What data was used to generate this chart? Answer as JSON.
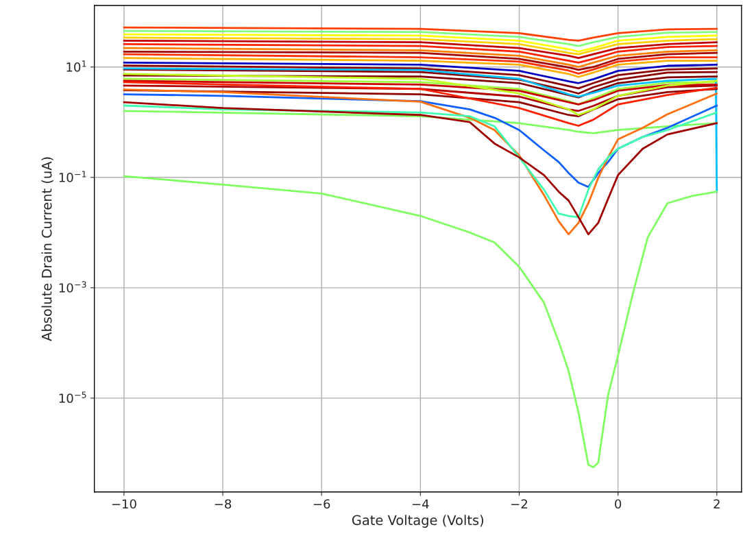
{
  "chart_data": {
    "type": "line",
    "xlabel": "Gate Voltage (Volts)",
    "ylabel": "Absolute Drain Current (uA)",
    "log": "y",
    "grid": true,
    "marker": "none",
    "line_style": "solid",
    "xlim": [
      -10.6,
      2.5
    ],
    "ylim": [
      2e-07,
      130
    ],
    "xticks": [
      {
        "value": -10,
        "label": "−10"
      },
      {
        "value": -8,
        "label": "−8"
      },
      {
        "value": -6,
        "label": "−6"
      },
      {
        "value": -4,
        "label": "−4"
      },
      {
        "value": -2,
        "label": "−2"
      },
      0,
      2
    ],
    "yticks": [
      {
        "value": 1e-05,
        "label": "10$^{−5}$"
      },
      {
        "value": 0.001,
        "label": "10$^{−3}$"
      },
      {
        "value": 0.1,
        "label": "10$^{−1}$"
      },
      {
        "value": 10,
        "label": "10$^{1}$"
      }
    ],
    "x": [
      -10,
      -4,
      -2,
      -1,
      -0.8,
      -0.5,
      0,
      1,
      2
    ],
    "series": [
      {
        "color": "#ff4000",
        "values": [
          52,
          49,
          41,
          31,
          30,
          34,
          41,
          48,
          49
        ]
      },
      {
        "color": "#80ff80",
        "values": [
          45,
          43,
          35,
          26,
          24,
          28,
          35,
          42,
          43
        ]
      },
      {
        "color": "#ffff00",
        "values": [
          39,
          37,
          30,
          21,
          19,
          22,
          30,
          35,
          37
        ]
      },
      {
        "color": "#ffd000",
        "values": [
          34,
          32,
          26,
          18,
          17,
          20,
          26,
          30,
          32
        ]
      },
      {
        "color": "#c00000",
        "values": [
          30,
          28,
          22,
          16,
          14.5,
          17,
          22,
          26,
          28
        ]
      },
      {
        "color": "#ff2000",
        "values": [
          26,
          24,
          19,
          13,
          12,
          14,
          19,
          23,
          24
        ]
      },
      {
        "color": "#ff8000",
        "values": [
          22,
          20,
          16,
          11,
          10,
          12,
          16,
          19,
          20
        ]
      },
      {
        "color": "#a00000",
        "values": [
          19,
          18,
          14,
          9.8,
          8.9,
          10,
          14,
          17,
          18
        ]
      },
      {
        "color": "#ff3000",
        "values": [
          17,
          15,
          12.5,
          8.6,
          7.6,
          9,
          12.5,
          15,
          15
        ]
      },
      {
        "color": "#ffb000",
        "values": [
          14.5,
          13,
          11,
          7.5,
          6.6,
          7.9,
          11,
          13,
          13
        ]
      },
      {
        "color": "#0000c0",
        "values": [
          12,
          11,
          8.5,
          5.5,
          5.1,
          6,
          8.5,
          10.5,
          11
        ]
      },
      {
        "color": "#8b0000",
        "values": [
          10.6,
          9.4,
          7.1,
          4.5,
          4.1,
          5.1,
          7.1,
          9,
          9.4
        ]
      },
      {
        "color": "#8b0000",
        "values": [
          9,
          8.1,
          5.9,
          3.7,
          3.3,
          4.3,
          5.9,
          7.9,
          8.1
        ]
      },
      {
        "color": "#800000",
        "values": [
          7.0,
          6.7,
          5.1,
          3.1,
          2.8,
          3.6,
          5.1,
          6.5,
          6.7
        ]
      },
      {
        "color": "#a0ff40",
        "values": [
          6.1,
          5.3,
          4.0,
          2.4,
          2.1,
          2.7,
          4.0,
          5.2,
          5.3
        ]
      },
      {
        "color": "#00c0ff",
        "x": [
          -10,
          -4,
          -2,
          -1,
          -0.8,
          -0.5,
          0,
          1,
          1.98,
          2
        ],
        "values": [
          9.4,
          8.8,
          6.1,
          3.2,
          2.9,
          3.4,
          4.6,
          5.6,
          6.1,
          0.054
        ]
      },
      {
        "color": "#c80000",
        "values": [
          5.6,
          4.8,
          3.7,
          2.3,
          2.1,
          2.5,
          3.7,
          4.7,
          4.8
        ]
      },
      {
        "color": "#b00000",
        "values": [
          4.6,
          4,
          2.9,
          1.7,
          1.6,
          1.97,
          3.0,
          4.3,
          4.6
        ]
      },
      {
        "color": "#900000",
        "values": [
          3.8,
          3.2,
          2.3,
          1.35,
          1.28,
          1.7,
          2.6,
          3.5,
          4.0
        ]
      },
      {
        "color": "#ff2000",
        "values": [
          5.3,
          4.0,
          1.8,
          0.96,
          0.86,
          1.11,
          2.1,
          3.1,
          4.2
        ]
      },
      {
        "color": "#c0ff20",
        "values": [
          7.5,
          6.1,
          3.3,
          1.71,
          1.35,
          1.71,
          3.0,
          4.6,
          5.6
        ]
      },
      {
        "color": "#80ff60",
        "values": [
          1.6,
          1.28,
          0.96,
          0.72,
          0.67,
          0.63,
          0.72,
          0.84,
          0.96
        ]
      },
      {
        "color": "#1060ff",
        "x": [
          -10,
          -8,
          -4,
          -3,
          -2.5,
          -2,
          -1.5,
          -1.2,
          -1,
          -0.8,
          -0.6,
          -0.4,
          -0.2,
          0,
          0.5,
          1,
          2
        ],
        "values": [
          3.2,
          3.0,
          2.4,
          1.7,
          1.2,
          0.72,
          0.31,
          0.19,
          0.12,
          0.08,
          0.067,
          0.12,
          0.19,
          0.33,
          0.54,
          0.79,
          2.0
        ]
      },
      {
        "color": "#ff7010",
        "x": [
          -10,
          -8,
          -4,
          -3,
          -2.5,
          -2,
          -1.5,
          -1.2,
          -1,
          -0.8,
          -0.6,
          -0.4,
          -0.2,
          0,
          0.5,
          1,
          2
        ],
        "values": [
          3.9,
          3.5,
          2.35,
          1.2,
          0.72,
          0.25,
          0.048,
          0.016,
          0.0093,
          0.015,
          0.034,
          0.098,
          0.23,
          0.49,
          0.79,
          1.39,
          3.3
        ]
      },
      {
        "color": "#40ffb0",
        "x": [
          -10,
          -8,
          -4,
          -3,
          -2.5,
          -2,
          -1.5,
          -1.2,
          -1,
          -0.8,
          -0.6,
          -0.4,
          -0.2,
          0,
          0.5,
          1,
          2
        ],
        "values": [
          2.0,
          1.7,
          1.5,
          1.28,
          0.84,
          0.23,
          0.06,
          0.022,
          0.02,
          0.019,
          0.06,
          0.14,
          0.23,
          0.33,
          0.54,
          0.72,
          1.5
        ]
      },
      {
        "color": "#a00000",
        "x": [
          -10,
          -8,
          -4,
          -3,
          -2.5,
          -2,
          -1.5,
          -1.2,
          -1,
          -0.8,
          -0.6,
          -0.4,
          -0.2,
          0,
          0.5,
          1,
          2
        ],
        "values": [
          2.3,
          1.8,
          1.35,
          1.0,
          0.41,
          0.23,
          0.11,
          0.055,
          0.038,
          0.019,
          0.0093,
          0.015,
          0.041,
          0.11,
          0.33,
          0.6,
          0.96
        ]
      },
      {
        "color": "#80ff60",
        "x": [
          -10,
          -8,
          -6,
          -4,
          -3,
          -2.5,
          -2,
          -1.5,
          -1.2,
          -1,
          -0.8,
          -0.6,
          -0.5,
          -0.4,
          -0.2,
          0,
          0.3,
          0.6,
          1,
          1.5,
          2
        ],
        "values": [
          0.105,
          0.074,
          0.051,
          0.02,
          0.01,
          0.0066,
          0.0024,
          0.00054,
          0.000105,
          3.1e-05,
          5.5e-06,
          6.2e-07,
          5.6e-07,
          6.8e-07,
          1.15e-05,
          5.9e-05,
          0.00078,
          0.0081,
          0.034,
          0.046,
          0.055
        ]
      }
    ]
  }
}
